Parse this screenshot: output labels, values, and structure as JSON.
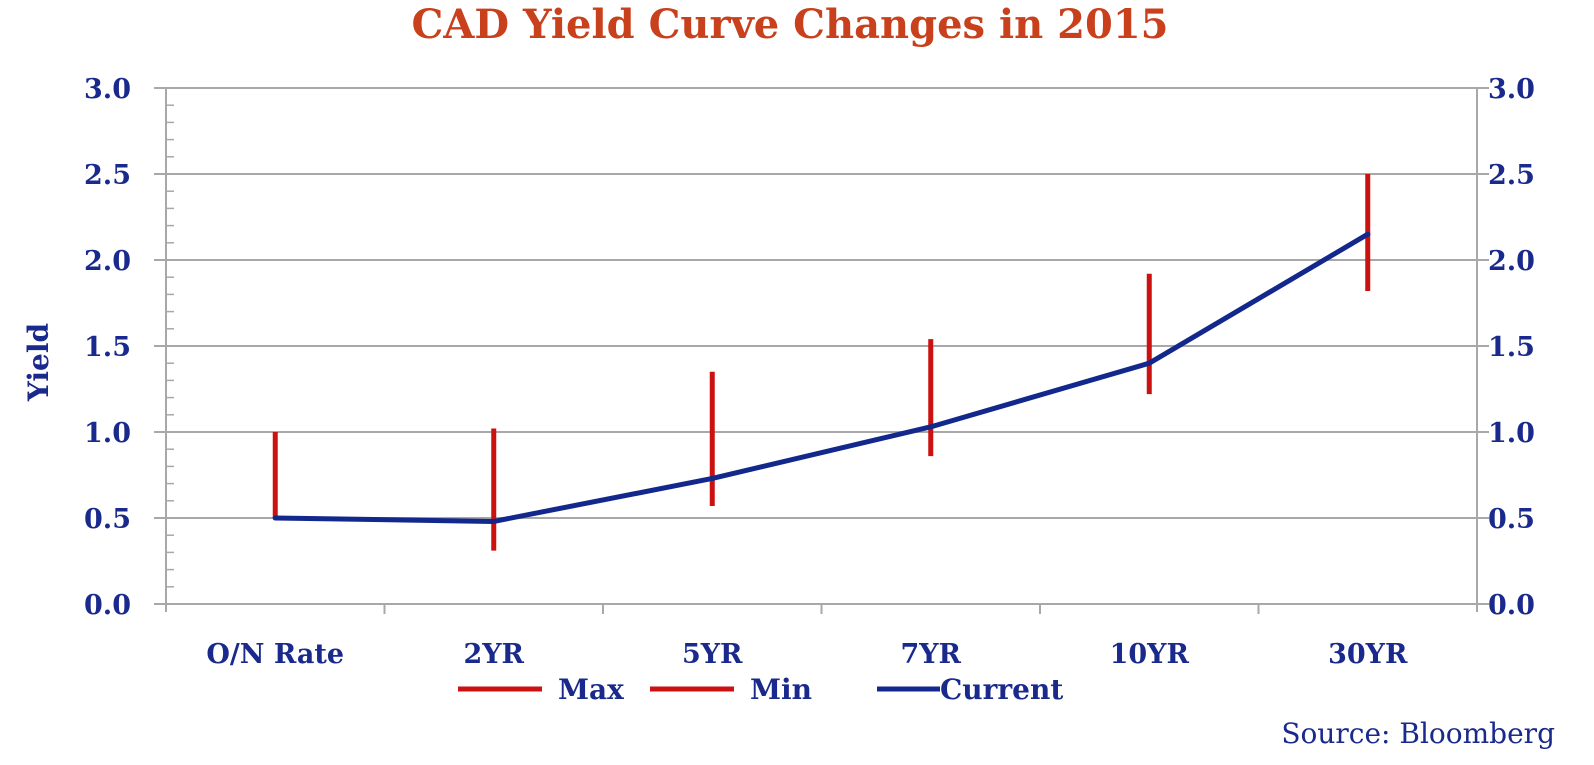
{
  "chart_data": {
    "type": "line",
    "title": "CAD Yield Curve Changes in 2015",
    "ylabel": "Yield",
    "xlabel": "",
    "categories": [
      "O/N Rate",
      "2YR",
      "5YR",
      "7YR",
      "10YR",
      "30YR"
    ],
    "ylim": [
      0,
      3.0
    ],
    "yticks": [
      "0.0",
      "0.5",
      "1.0",
      "1.5",
      "2.0",
      "2.5",
      "3.0"
    ],
    "series": [
      {
        "name": "Max",
        "values": [
          1.0,
          1.02,
          1.35,
          1.54,
          1.92,
          2.5
        ]
      },
      {
        "name": "Min",
        "values": [
          0.5,
          0.31,
          0.57,
          0.86,
          1.22,
          1.82
        ]
      },
      {
        "name": "Current",
        "values": [
          0.5,
          0.48,
          0.73,
          1.03,
          1.4,
          2.15
        ]
      }
    ],
    "grid": true,
    "legend": "bottom",
    "source": "Source: Bloomberg",
    "colors": {
      "title": "#c8401c",
      "range": "#cc1111",
      "current": "#12288c",
      "text": "#1a2a8c",
      "grid": "#a8a8a8"
    }
  }
}
